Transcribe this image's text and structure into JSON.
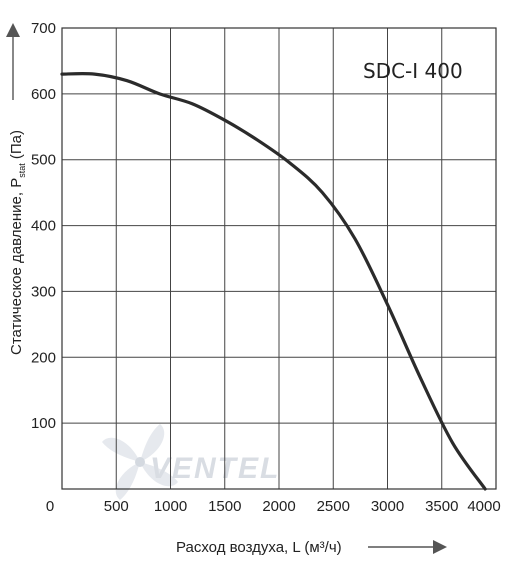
{
  "chart_data": {
    "type": "line",
    "model_label": "SDC-I 400",
    "ylabel_main": "Статическое давление, P",
    "ylabel_sub": "stat",
    "ylabel_unit": " (Па)",
    "xlabel": "Расход воздуха, L (м³/ч)",
    "xlim": [
      0,
      4000
    ],
    "ylim": [
      0,
      700
    ],
    "x_ticks": [
      0,
      500,
      1000,
      1500,
      2000,
      2500,
      3000,
      3500,
      4000
    ],
    "y_ticks": [
      100,
      200,
      300,
      400,
      500,
      600,
      700
    ],
    "grid": true,
    "watermark": "VENTEL",
    "series": [
      {
        "color": "#2b2b2b",
        "x": [
          0,
          300,
          600,
          900,
          1200,
          1500,
          1800,
          2100,
          2400,
          2700,
          3000,
          3300,
          3600,
          3900
        ],
        "y": [
          630,
          630,
          620,
          600,
          585,
          560,
          530,
          495,
          450,
          380,
          280,
          170,
          70,
          0
        ]
      }
    ]
  }
}
